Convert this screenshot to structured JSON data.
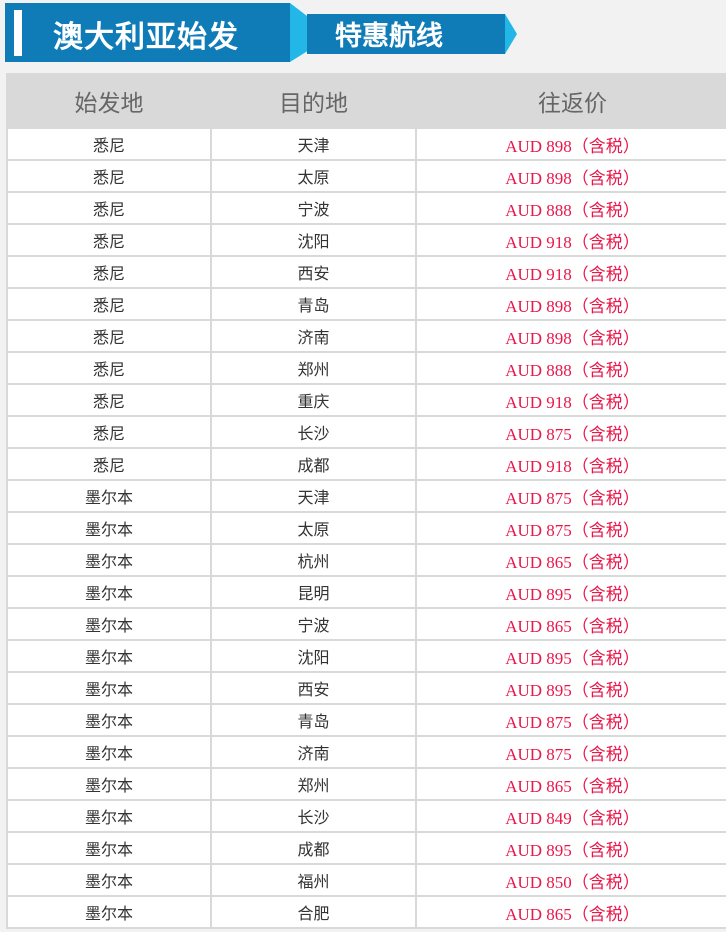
{
  "banner": {
    "title": "澳大利亚始发",
    "subtitle": "特惠航线"
  },
  "headers": [
    "始发地",
    "目的地",
    "往返价"
  ],
  "rows": [
    [
      "悉尼",
      "天津",
      "AUD 898（含税）"
    ],
    [
      "悉尼",
      "太原",
      "AUD 898（含税）"
    ],
    [
      "悉尼",
      "宁波",
      "AUD 888（含税）"
    ],
    [
      "悉尼",
      "沈阳",
      "AUD 918（含税）"
    ],
    [
      "悉尼",
      "西安",
      "AUD 918（含税）"
    ],
    [
      "悉尼",
      "青岛",
      "AUD 898（含税）"
    ],
    [
      "悉尼",
      "济南",
      "AUD 898（含税）"
    ],
    [
      "悉尼",
      "郑州",
      "AUD 888（含税）"
    ],
    [
      "悉尼",
      "重庆",
      "AUD 918（含税）"
    ],
    [
      "悉尼",
      "长沙",
      "AUD 875（含税）"
    ],
    [
      "悉尼",
      "成都",
      "AUD 918（含税）"
    ],
    [
      "墨尔本",
      "天津",
      "AUD 875（含税）"
    ],
    [
      "墨尔本",
      "太原",
      "AUD 875（含税）"
    ],
    [
      "墨尔本",
      "杭州",
      "AUD 865（含税）"
    ],
    [
      "墨尔本",
      "昆明",
      "AUD 895（含税）"
    ],
    [
      "墨尔本",
      "宁波",
      "AUD 865（含税）"
    ],
    [
      "墨尔本",
      "沈阳",
      "AUD 895（含税）"
    ],
    [
      "墨尔本",
      "西安",
      "AUD 895（含税）"
    ],
    [
      "墨尔本",
      "青岛",
      "AUD 875（含税）"
    ],
    [
      "墨尔本",
      "济南",
      "AUD 875（含税）"
    ],
    [
      "墨尔本",
      "郑州",
      "AUD 865（含税）"
    ],
    [
      "墨尔本",
      "长沙",
      "AUD 849（含税）"
    ],
    [
      "墨尔本",
      "成都",
      "AUD 895（含税）"
    ],
    [
      "墨尔本",
      "福州",
      "AUD 850（含税）"
    ],
    [
      "墨尔本",
      "合肥",
      "AUD 865（含税）"
    ]
  ],
  "colors": {
    "banner": "#0f7cb8",
    "accent": "#22b7e6",
    "price": "#e8174a",
    "header_bg": "#d9d9d9"
  }
}
